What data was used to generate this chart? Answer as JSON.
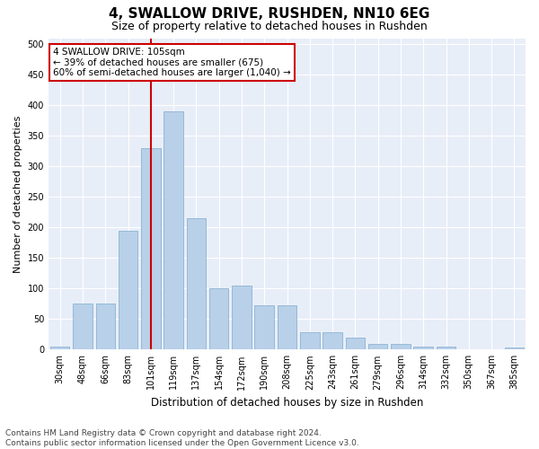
{
  "title": "4, SWALLOW DRIVE, RUSHDEN, NN10 6EG",
  "subtitle": "Size of property relative to detached houses in Rushden",
  "xlabel": "Distribution of detached houses by size in Rushden",
  "ylabel": "Number of detached properties",
  "categories": [
    "30sqm",
    "48sqm",
    "66sqm",
    "83sqm",
    "101sqm",
    "119sqm",
    "137sqm",
    "154sqm",
    "172sqm",
    "190sqm",
    "208sqm",
    "225sqm",
    "243sqm",
    "261sqm",
    "279sqm",
    "296sqm",
    "314sqm",
    "332sqm",
    "350sqm",
    "367sqm",
    "385sqm"
  ],
  "values": [
    5,
    75,
    75,
    195,
    330,
    390,
    215,
    100,
    105,
    72,
    72,
    28,
    28,
    20,
    10,
    10,
    5,
    5,
    1,
    1,
    3
  ],
  "bar_color": "#b8d0e8",
  "bar_edge_color": "#8ab4d4",
  "red_line_index": 4,
  "red_line_color": "#cc0000",
  "ylim": [
    0,
    510
  ],
  "yticks": [
    0,
    50,
    100,
    150,
    200,
    250,
    300,
    350,
    400,
    450,
    500
  ],
  "annotation_text": "4 SWALLOW DRIVE: 105sqm\n← 39% of detached houses are smaller (675)\n60% of semi-detached houses are larger (1,040) →",
  "annotation_box_color": "#ffffff",
  "annotation_box_edge": "#cc0000",
  "footer_line1": "Contains HM Land Registry data © Crown copyright and database right 2024.",
  "footer_line2": "Contains public sector information licensed under the Open Government Licence v3.0.",
  "bg_color": "#e8eef8",
  "grid_color": "#ffffff",
  "title_fontsize": 11,
  "subtitle_fontsize": 9,
  "tick_fontsize": 7,
  "ylabel_fontsize": 8,
  "xlabel_fontsize": 8.5,
  "annotation_fontsize": 7.5,
  "footer_fontsize": 6.5
}
